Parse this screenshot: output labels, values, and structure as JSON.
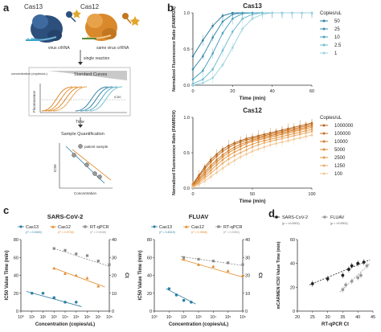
{
  "panels": {
    "a": "a",
    "b": "b",
    "c": "c",
    "d": "d"
  },
  "schematic": {
    "cas13_label": "Cas13",
    "cas12_label": "Cas12",
    "virus_crrna": "virus crRNA",
    "same_virus_crrna": "same virus crRNA",
    "single_reaction": "single reaction",
    "standard_curves": "Standard Curves",
    "concentration_copies": "concentration (copies/uL)",
    "fluorescence": "Fluorescence",
    "ic50": "IC50",
    "time": "Time",
    "sample_quantification": "Sample Quantification",
    "patient_sample": "patient sample",
    "concentration": "Concentration",
    "ic50_axis": "IC50"
  },
  "colors": {
    "cas13": "#2e7fa3",
    "cas12": "#e08a2a",
    "rtqpcr": "#8a8a8a",
    "sars": "#222222",
    "fluav": "#9a9a9a",
    "cas13_body": "#2d4f7c",
    "cas12_body": "#d9892b"
  },
  "chart_data": [
    {
      "id": "cas13_kinetics",
      "type": "line",
      "title": "Cas13",
      "xlabel": "Time (min)",
      "ylabel": "Normalized Fluorescence Ratio (FAM/ROX)",
      "xlim": [
        0,
        60
      ],
      "ylim": [
        0,
        1.0
      ],
      "xticks": [
        "0",
        "20",
        "40",
        "60"
      ],
      "yticks": [
        "0.0",
        "0.5",
        "1.0"
      ],
      "legend_title": "Copies/uL",
      "legend_position": "right",
      "x": [
        0,
        5,
        10,
        15,
        20,
        25,
        30,
        35,
        40,
        45,
        50,
        55,
        60
      ],
      "series": [
        {
          "name": "50",
          "color": "#2e7fa3",
          "values": [
            0.4,
            0.62,
            0.82,
            0.96,
            1.0,
            1.0,
            1.0,
            1.0,
            1.0,
            1.0,
            1.0,
            1.0,
            1.0
          ]
        },
        {
          "name": "25",
          "color": "#3b8fb0",
          "values": [
            0.22,
            0.4,
            0.66,
            0.88,
            0.98,
            1.0,
            1.0,
            1.0,
            1.0,
            1.0,
            1.0,
            1.0,
            1.0
          ]
        },
        {
          "name": "10",
          "color": "#4ba3be",
          "values": [
            0.08,
            0.2,
            0.44,
            0.72,
            0.92,
            0.99,
            1.0,
            1.0,
            1.0,
            1.0,
            1.0,
            1.0,
            1.0
          ]
        },
        {
          "name": "2.5",
          "color": "#6fbdd1",
          "values": [
            0.02,
            0.08,
            0.22,
            0.48,
            0.74,
            0.92,
            0.98,
            1.0,
            1.0,
            1.0,
            1.0,
            1.0,
            1.0
          ]
        },
        {
          "name": "1",
          "color": "#9fd3e0",
          "values": [
            0.0,
            0.03,
            0.1,
            0.28,
            0.52,
            0.78,
            0.92,
            0.98,
            1.0,
            1.0,
            1.0,
            1.0,
            1.0
          ]
        }
      ]
    },
    {
      "id": "cas12_kinetics",
      "type": "line",
      "title": "Cas12",
      "xlabel": "Time (min)",
      "ylabel": "Normalized Fluorescence Ratio (FAM/ROX)",
      "xlim": [
        0,
        100
      ],
      "ylim": [
        0,
        1.0
      ],
      "xticks": [
        "0",
        "50",
        "100"
      ],
      "yticks": [
        "0.0",
        "0.5",
        "1.0"
      ],
      "legend_title": "Copies/uL",
      "legend_position": "right",
      "x": [
        0,
        5,
        10,
        15,
        20,
        25,
        30,
        35,
        40,
        45,
        50,
        55,
        60,
        65,
        70,
        75,
        80,
        85,
        90,
        95,
        100
      ],
      "series": [
        {
          "name": "1000000",
          "color": "#b5651d",
          "values": [
            0.06,
            0.18,
            0.3,
            0.4,
            0.48,
            0.55,
            0.6,
            0.64,
            0.67,
            0.7,
            0.72,
            0.74,
            0.76,
            0.78,
            0.8,
            0.82,
            0.84,
            0.86,
            0.88,
            0.9,
            0.92
          ]
        },
        {
          "name": "100000",
          "color": "#c46f22",
          "values": [
            0.05,
            0.16,
            0.27,
            0.37,
            0.45,
            0.52,
            0.57,
            0.62,
            0.65,
            0.68,
            0.7,
            0.72,
            0.74,
            0.76,
            0.78,
            0.8,
            0.82,
            0.84,
            0.86,
            0.88,
            0.9
          ]
        },
        {
          "name": "10000",
          "color": "#d27c2a",
          "values": [
            0.04,
            0.13,
            0.23,
            0.32,
            0.4,
            0.47,
            0.53,
            0.58,
            0.62,
            0.65,
            0.68,
            0.7,
            0.72,
            0.74,
            0.76,
            0.78,
            0.8,
            0.82,
            0.84,
            0.86,
            0.88
          ]
        },
        {
          "name": "5000",
          "color": "#dc8a36",
          "values": [
            0.03,
            0.11,
            0.2,
            0.29,
            0.37,
            0.44,
            0.5,
            0.55,
            0.59,
            0.63,
            0.66,
            0.68,
            0.7,
            0.72,
            0.74,
            0.76,
            0.78,
            0.8,
            0.82,
            0.84,
            0.86
          ]
        },
        {
          "name": "2500",
          "color": "#e49a4c",
          "values": [
            0.02,
            0.09,
            0.17,
            0.25,
            0.33,
            0.4,
            0.46,
            0.51,
            0.55,
            0.59,
            0.62,
            0.65,
            0.67,
            0.69,
            0.71,
            0.73,
            0.75,
            0.77,
            0.79,
            0.81,
            0.83
          ]
        },
        {
          "name": "1250",
          "color": "#ebae6c",
          "values": [
            0.02,
            0.07,
            0.14,
            0.21,
            0.28,
            0.35,
            0.41,
            0.46,
            0.5,
            0.54,
            0.58,
            0.61,
            0.64,
            0.66,
            0.68,
            0.7,
            0.72,
            0.74,
            0.76,
            0.78,
            0.8
          ]
        },
        {
          "name": "100",
          "color": "#f2c894",
          "values": [
            0.01,
            0.05,
            0.1,
            0.16,
            0.22,
            0.28,
            0.34,
            0.39,
            0.44,
            0.48,
            0.52,
            0.55,
            0.58,
            0.61,
            0.63,
            0.65,
            0.67,
            0.69,
            0.71,
            0.73,
            0.75
          ]
        }
      ]
    },
    {
      "id": "sars_cov2_quant",
      "type": "scatter",
      "title": "SARS-CoV-2",
      "xlabel": "Concentration (copies/uL)",
      "ylabel_left": "IC50 Value Time (min)",
      "ylabel_right": "Ct",
      "x_scale": "log",
      "xlim_exp": [
        0,
        8
      ],
      "xticks": [
        "10⁰",
        "10¹",
        "10²",
        "10³",
        "10⁴",
        "10⁵",
        "10⁶",
        "10⁷",
        "10⁸"
      ],
      "ylim_left": [
        0,
        80
      ],
      "yticks_left": [
        "0",
        "20",
        "40",
        "60",
        "80"
      ],
      "ylim_right": [
        0,
        40
      ],
      "yticks_right": [
        "0",
        "10",
        "20",
        "30",
        "40"
      ],
      "legend": [
        {
          "name": "Cas13",
          "r2": "(r² = 0.9450)",
          "color": "#2e7fa3",
          "marker": "circle"
        },
        {
          "name": "Cas12",
          "r2": "(r² = 0.9739)",
          "color": "#e08a2a",
          "marker": "triangle"
        },
        {
          "name": "RT-qPCR",
          "r2": "(r² = 0.9158)",
          "color": "#8a8a8a",
          "marker": "square"
        }
      ],
      "series": [
        {
          "name": "Cas13",
          "axis": "left",
          "x": [
            1,
            2,
            3,
            4,
            5
          ],
          "values": [
            20,
            20,
            15,
            10,
            10
          ],
          "fit": [
            [
              0.5,
              22
            ],
            [
              5.5,
              5
            ]
          ]
        },
        {
          "name": "Cas12",
          "axis": "left",
          "x": [
            3,
            4,
            5,
            6,
            7
          ],
          "values": [
            48,
            42,
            40,
            37,
            28
          ],
          "fit": [
            [
              3,
              48
            ],
            [
              7.6,
              27
            ]
          ]
        },
        {
          "name": "RT-qPCR",
          "axis": "right",
          "x": [
            3,
            4,
            5,
            6,
            7,
            8
          ],
          "values": [
            35,
            34,
            32,
            31,
            28,
            26
          ],
          "fit": [
            [
              3,
              35
            ],
            [
              8,
              25
            ]
          ]
        }
      ]
    },
    {
      "id": "fluav_quant",
      "type": "scatter",
      "title": "FLUAV",
      "xlabel": "Concentration (copies/uL)",
      "ylabel_left": "IC50 Value Time (min)",
      "ylabel_right": "Ct",
      "x_scale": "log",
      "xlim_exp": [
        0,
        6
      ],
      "xticks": [
        "10⁰",
        "10¹",
        "10²",
        "10³",
        "10⁴",
        "10⁵",
        "10⁶"
      ],
      "ylim_left": [
        0,
        80
      ],
      "yticks_left": [
        "0",
        "20",
        "40",
        "60",
        "80"
      ],
      "ylim_right": [
        0,
        40
      ],
      "yticks_right": [
        "0",
        "10",
        "20",
        "30",
        "40"
      ],
      "legend": [
        {
          "name": "Cas13",
          "r2": "(r² = 0.8319)",
          "color": "#2e7fa3",
          "marker": "circle"
        },
        {
          "name": "Cas12",
          "r2": "(r² = 0.9558)",
          "color": "#e08a2a",
          "marker": "triangle"
        },
        {
          "name": "RT-qPCR",
          "r2": "(r² = 0.9250)",
          "color": "#8a8a8a",
          "marker": "square"
        }
      ],
      "series": [
        {
          "name": "Cas13",
          "axis": "left",
          "x": [
            1,
            1.5,
            2,
            2.5
          ],
          "values": [
            25,
            18,
            12,
            10
          ],
          "fit": [
            [
              0.8,
              25
            ],
            [
              2.8,
              8
            ]
          ]
        },
        {
          "name": "Cas12",
          "axis": "left",
          "x": [
            2,
            3,
            4,
            5,
            6
          ],
          "values": [
            58,
            52,
            50,
            45,
            40
          ],
          "fit": [
            [
              1.8,
              58
            ],
            [
              6,
              38
            ]
          ]
        },
        {
          "name": "RT-qPCR",
          "axis": "right",
          "x": [
            2,
            3,
            4,
            5,
            6
          ],
          "values": [
            30,
            29,
            28,
            27,
            26
          ],
          "fit": [
            [
              1.8,
              30.5
            ],
            [
              6,
              25.5
            ]
          ]
        }
      ]
    },
    {
      "id": "carmen_vs_ct",
      "type": "scatter",
      "xlabel": "RT-qPCR Ct",
      "ylabel": "mCARMEN IC50 Value Time (min)",
      "xlim": [
        20,
        45
      ],
      "xticks": [
        "20",
        "25",
        "30",
        "35",
        "40",
        "45"
      ],
      "ylim": [
        0,
        60
      ],
      "yticks": [
        "0",
        "20",
        "40",
        "60"
      ],
      "legend": [
        {
          "name": "SARS-CoV-2",
          "p": "(p = <0.0001)",
          "color": "#222222"
        },
        {
          "name": "FLUAV",
          "p": "(p = <0.0001)",
          "color": "#9a9a9a"
        }
      ],
      "series": [
        {
          "name": "SARS-CoV-2",
          "x": [
            25,
            30,
            35,
            37,
            38,
            40,
            42
          ],
          "values": [
            23,
            27,
            30,
            35,
            38,
            40,
            41
          ],
          "fit": [
            [
              24,
              22
            ],
            [
              44,
              43
            ]
          ]
        },
        {
          "name": "FLUAV",
          "x": [
            35,
            36,
            38,
            40,
            41,
            43
          ],
          "values": [
            18,
            22,
            25,
            28,
            30,
            38
          ],
          "fit": [
            [
              34,
              16
            ],
            [
              44,
              40
            ]
          ]
        }
      ]
    }
  ]
}
